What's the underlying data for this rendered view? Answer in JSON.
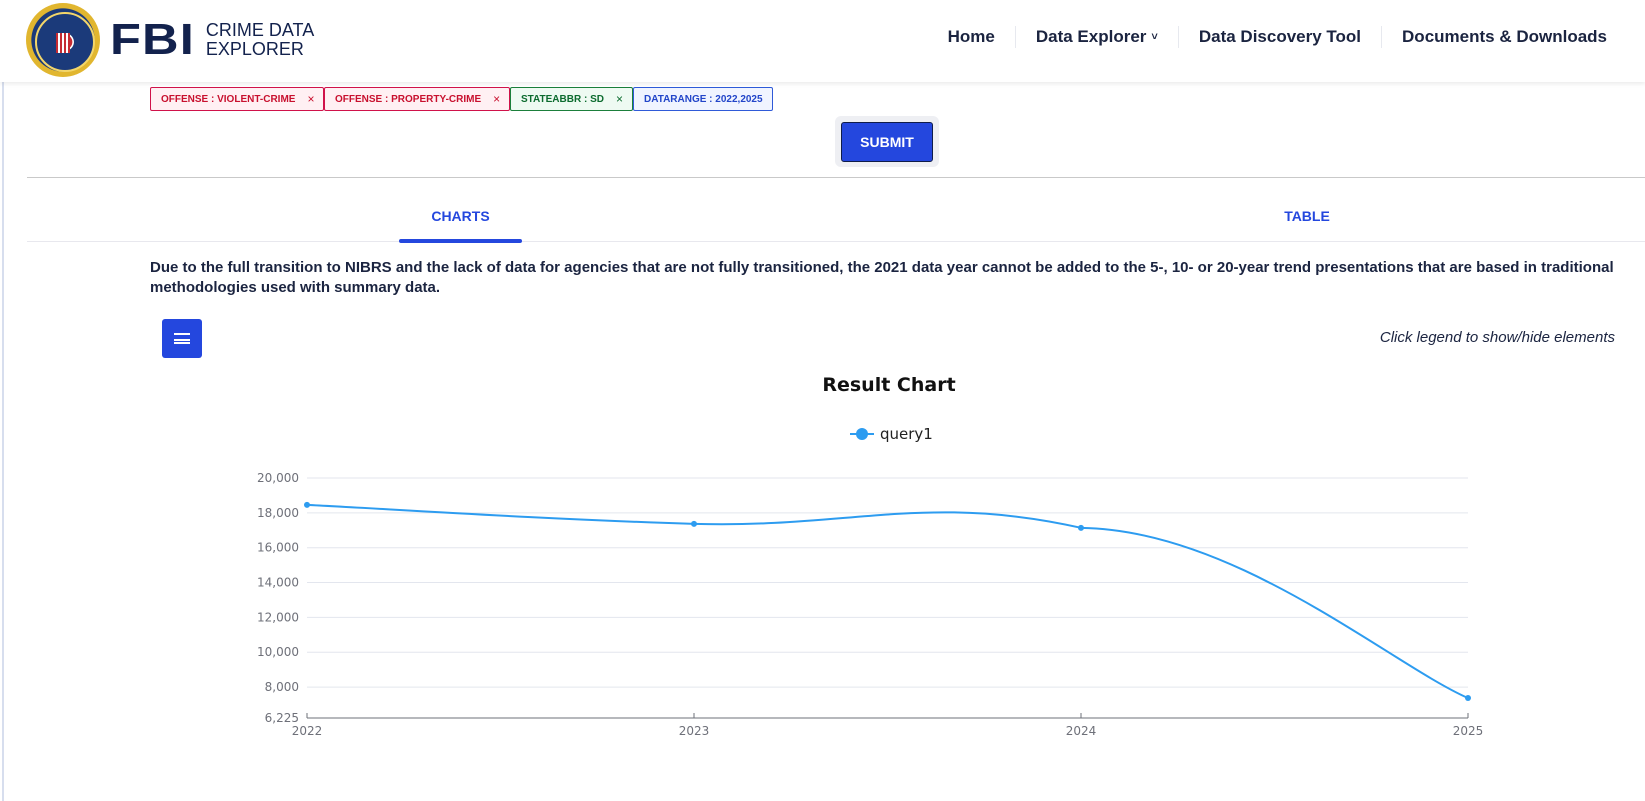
{
  "header": {
    "logo_main": "FBI",
    "logo_sub_line1": "CRIME DATA",
    "logo_sub_line2": "EXPLORER",
    "nav": [
      {
        "label": "Home"
      },
      {
        "label": "Data Explorer",
        "has_dropdown": true,
        "chevron": "˅"
      },
      {
        "label": "Data Discovery Tool"
      },
      {
        "label": "Documents & Downloads"
      }
    ]
  },
  "filters": {
    "chips": [
      {
        "label": "OFFENSE : VIOLENT-CRIME",
        "removable": true,
        "color": "#c8102e"
      },
      {
        "label": "OFFENSE : PROPERTY-CRIME",
        "removable": true,
        "color": "#c8102e"
      },
      {
        "label": "STATEABBR : SD",
        "removable": true,
        "color": "#0b6b2e"
      },
      {
        "label": "DATARANGE : 2022,2025",
        "removable": false,
        "color": "#2245c9"
      }
    ],
    "remove_glyph": "×",
    "submit_label": "SUBMIT"
  },
  "tabs": {
    "items": [
      {
        "label": "CHARTS",
        "active": true
      },
      {
        "label": "TABLE",
        "active": false
      }
    ]
  },
  "notice": "Due to the full transition to NIBRS and the lack of data for agencies that are not fully transitioned, the 2021 data year cannot be added to the 5-, 10- or 20-year trend presentations that are based in traditional methodologies used with summary data.",
  "chart_controls": {
    "menu_icon": "hamburger-menu",
    "legend_hint": "Click legend to show/hide elements"
  },
  "colors": {
    "accent": "#2447de",
    "series": "#2d9cf0",
    "text_dark": "#1b2440"
  },
  "chart_data": {
    "type": "line",
    "title": "Result Chart",
    "xlabel": "",
    "ylabel": "",
    "categories": [
      "2022",
      "2023",
      "2024",
      "2025"
    ],
    "series": [
      {
        "name": "query1",
        "values": [
          18460,
          17370,
          17140,
          7370
        ]
      }
    ],
    "y_ticks": [
      "6,225",
      "8,000",
      "10,000",
      "12,000",
      "14,000",
      "16,000",
      "18,000",
      "20,000"
    ],
    "ylim": [
      6225,
      20000
    ],
    "grid": true,
    "legend_position": "top",
    "smooth": true
  }
}
